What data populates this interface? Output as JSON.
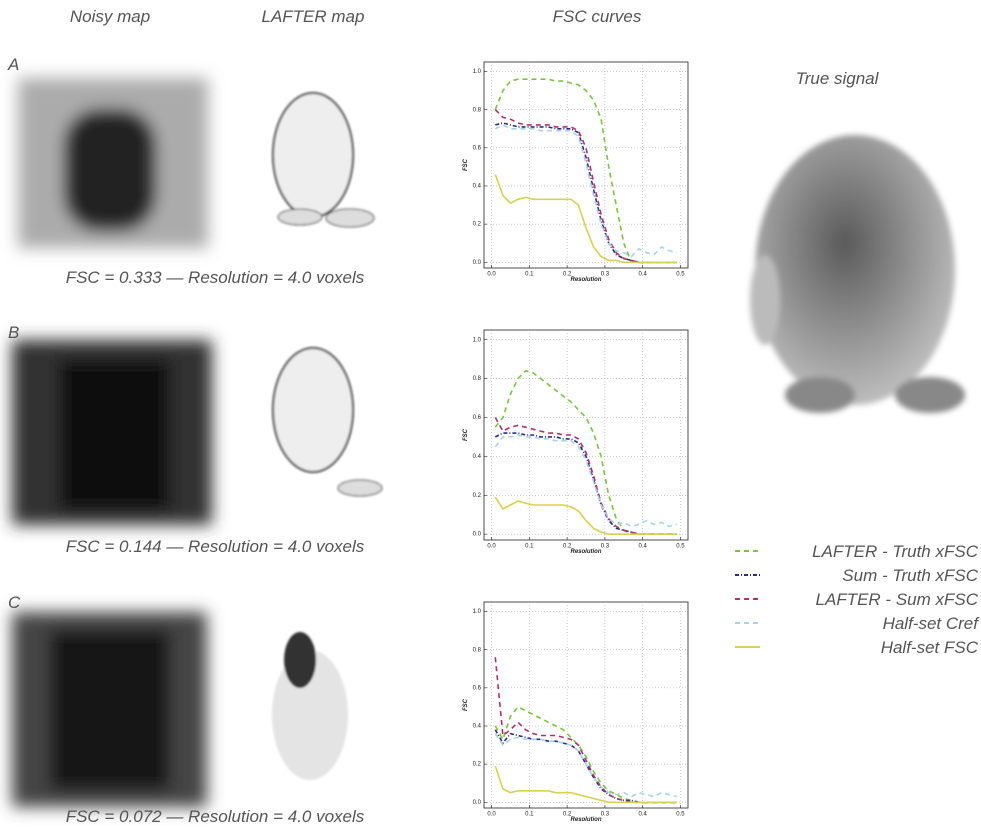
{
  "figure": {
    "columns": [
      "Noisy map",
      "LAFTER map",
      "FSC curves"
    ],
    "true_signal": "True signal",
    "panels": [
      {
        "letter": "A",
        "caption": "FSC = 0.333  —  Resolution = 4.0 voxels"
      },
      {
        "letter": "B",
        "caption": "FSC = 0.144  —  Resolution = 4.0 voxels"
      },
      {
        "letter": "C",
        "caption": "FSC = 0.072  —  Resolution = 4.0 voxels"
      }
    ]
  },
  "chart_data": [
    {
      "type": "line",
      "x_label": "Resolution",
      "y_label": "FSC",
      "x": [
        0.01,
        0.03,
        0.05,
        0.07,
        0.09,
        0.11,
        0.13,
        0.15,
        0.17,
        0.19,
        0.21,
        0.23,
        0.25,
        0.27,
        0.29,
        0.31,
        0.33,
        0.35,
        0.37,
        0.39,
        0.41,
        0.43,
        0.45,
        0.47,
        0.49
      ],
      "xlim": [
        -0.02,
        0.52
      ],
      "ylim": [
        -0.03,
        1.05
      ],
      "grid": true,
      "xticks": [
        {
          "value": 0,
          "label": "0.0"
        },
        {
          "value": 0.1,
          "label": "0.1"
        },
        {
          "value": 0.2,
          "label": "0.2"
        },
        {
          "value": 0.3,
          "label": "0.3"
        },
        {
          "value": 0.4,
          "label": "0.4"
        },
        {
          "value": 0.5,
          "label": "0.5"
        }
      ],
      "yticks": [
        {
          "value": 0,
          "label": "0.0"
        },
        {
          "value": 0.2,
          "label": "0.2"
        },
        {
          "value": 0.4,
          "label": "0.4"
        },
        {
          "value": 0.6,
          "label": "0.6"
        },
        {
          "value": 0.8,
          "label": "0.8"
        },
        {
          "value": 1,
          "label": "1.0"
        }
      ],
      "series": [
        {
          "name": "LAFTER - Truth xFSC",
          "color": "#7dc242",
          "linestyle": "dashed",
          "values": [
            0.8,
            0.9,
            0.95,
            0.96,
            0.96,
            0.96,
            0.96,
            0.96,
            0.95,
            0.95,
            0.94,
            0.93,
            0.9,
            0.85,
            0.75,
            0.5,
            0.3,
            0.1,
            0,
            0,
            0,
            0,
            0,
            0,
            0
          ]
        },
        {
          "name": "Sum - Truth xFSC",
          "color": "#2b2b8c",
          "linestyle": "dotted",
          "values": [
            0.72,
            0.73,
            0.72,
            0.71,
            0.71,
            0.71,
            0.71,
            0.71,
            0.7,
            0.7,
            0.7,
            0.68,
            0.55,
            0.38,
            0.22,
            0.1,
            0.04,
            0.02,
            0.01,
            0,
            0,
            0,
            0,
            0,
            0
          ]
        },
        {
          "name": "LAFTER - Sum xFSC",
          "color": "#b0306c",
          "linestyle": "dashed",
          "values": [
            0.8,
            0.76,
            0.75,
            0.73,
            0.72,
            0.72,
            0.72,
            0.72,
            0.71,
            0.71,
            0.71,
            0.69,
            0.6,
            0.42,
            0.25,
            0.12,
            0.05,
            0.02,
            0.01,
            0,
            0,
            0,
            0,
            0,
            0
          ]
        },
        {
          "name": "Half-set Cref",
          "color": "#a8d4e6",
          "linestyle": "dashed",
          "values": [
            0.7,
            0.72,
            0.7,
            0.7,
            0.7,
            0.7,
            0.69,
            0.69,
            0.69,
            0.69,
            0.69,
            0.66,
            0.52,
            0.35,
            0.2,
            0.1,
            0.06,
            0.05,
            0.03,
            0.07,
            0.05,
            0.04,
            0.08,
            0.06,
            0.05
          ]
        },
        {
          "name": "Half-set FSC",
          "color": "#d8d050",
          "linestyle": "solid",
          "values": [
            0.46,
            0.35,
            0.31,
            0.33,
            0.34,
            0.33,
            0.33,
            0.33,
            0.33,
            0.33,
            0.33,
            0.3,
            0.18,
            0.08,
            0.03,
            0.01,
            0.01,
            0,
            0,
            0,
            0,
            0,
            0,
            0,
            0
          ]
        }
      ]
    },
    {
      "type": "line",
      "x_label": "Resolution",
      "y_label": "FSC",
      "x": [
        0.01,
        0.03,
        0.05,
        0.07,
        0.09,
        0.11,
        0.13,
        0.15,
        0.17,
        0.19,
        0.21,
        0.23,
        0.25,
        0.27,
        0.29,
        0.31,
        0.33,
        0.35,
        0.37,
        0.39,
        0.41,
        0.43,
        0.45,
        0.47,
        0.49
      ],
      "xlim": [
        -0.02,
        0.52
      ],
      "ylim": [
        -0.03,
        1.05
      ],
      "grid": true,
      "xticks": [
        {
          "value": 0,
          "label": "0.0"
        },
        {
          "value": 0.1,
          "label": "0.1"
        },
        {
          "value": 0.2,
          "label": "0.2"
        },
        {
          "value": 0.3,
          "label": "0.3"
        },
        {
          "value": 0.4,
          "label": "0.4"
        },
        {
          "value": 0.5,
          "label": "0.5"
        }
      ],
      "yticks": [
        {
          "value": 0,
          "label": "0.0"
        },
        {
          "value": 0.2,
          "label": "0.2"
        },
        {
          "value": 0.4,
          "label": "0.4"
        },
        {
          "value": 0.6,
          "label": "0.6"
        },
        {
          "value": 0.8,
          "label": "0.8"
        },
        {
          "value": 1,
          "label": "1.0"
        }
      ],
      "series": [
        {
          "name": "LAFTER - Truth xFSC",
          "color": "#7dc242",
          "linestyle": "dashed",
          "values": [
            0.55,
            0.6,
            0.72,
            0.8,
            0.84,
            0.83,
            0.8,
            0.77,
            0.74,
            0.71,
            0.68,
            0.64,
            0.6,
            0.52,
            0.4,
            0.2,
            0.08,
            0.02,
            0,
            0,
            0,
            0,
            0,
            0,
            0
          ]
        },
        {
          "name": "Sum - Truth xFSC",
          "color": "#2b2b8c",
          "linestyle": "dotted",
          "values": [
            0.5,
            0.52,
            0.52,
            0.52,
            0.51,
            0.51,
            0.5,
            0.5,
            0.5,
            0.49,
            0.49,
            0.47,
            0.4,
            0.28,
            0.15,
            0.07,
            0.03,
            0.02,
            0.01,
            0,
            0,
            0,
            0,
            0,
            0
          ]
        },
        {
          "name": "LAFTER - Sum xFSC",
          "color": "#b0306c",
          "linestyle": "dashed",
          "values": [
            0.6,
            0.53,
            0.55,
            0.56,
            0.55,
            0.54,
            0.53,
            0.52,
            0.52,
            0.51,
            0.51,
            0.49,
            0.42,
            0.3,
            0.16,
            0.08,
            0.04,
            0.02,
            0.01,
            0,
            0,
            0,
            0,
            0,
            0
          ]
        },
        {
          "name": "Half-set Cref",
          "color": "#a8d4e6",
          "linestyle": "dashed",
          "values": [
            0.45,
            0.5,
            0.5,
            0.51,
            0.5,
            0.5,
            0.49,
            0.49,
            0.48,
            0.48,
            0.48,
            0.45,
            0.38,
            0.27,
            0.15,
            0.08,
            0.05,
            0.06,
            0.04,
            0.05,
            0.07,
            0.05,
            0.06,
            0.04,
            0.05
          ]
        },
        {
          "name": "Half-set FSC",
          "color": "#d8d050",
          "linestyle": "solid",
          "values": [
            0.19,
            0.13,
            0.15,
            0.17,
            0.16,
            0.15,
            0.15,
            0.15,
            0.15,
            0.15,
            0.14,
            0.12,
            0.07,
            0.03,
            0.01,
            0,
            0,
            0,
            0,
            0,
            0,
            0,
            0,
            0,
            0
          ]
        }
      ]
    },
    {
      "type": "line",
      "x_label": "Resolution",
      "y_label": "FSC",
      "x": [
        0.01,
        0.03,
        0.05,
        0.07,
        0.09,
        0.11,
        0.13,
        0.15,
        0.17,
        0.19,
        0.21,
        0.23,
        0.25,
        0.27,
        0.29,
        0.31,
        0.33,
        0.35,
        0.37,
        0.39,
        0.41,
        0.43,
        0.45,
        0.47,
        0.49
      ],
      "xlim": [
        -0.02,
        0.52
      ],
      "ylim": [
        -0.03,
        1.05
      ],
      "grid": true,
      "xticks": [
        {
          "value": 0,
          "label": "0.0"
        },
        {
          "value": 0.1,
          "label": "0.1"
        },
        {
          "value": 0.2,
          "label": "0.2"
        },
        {
          "value": 0.3,
          "label": "0.3"
        },
        {
          "value": 0.4,
          "label": "0.4"
        },
        {
          "value": 0.5,
          "label": "0.5"
        }
      ],
      "yticks": [
        {
          "value": 0,
          "label": "0.0"
        },
        {
          "value": 0.2,
          "label": "0.2"
        },
        {
          "value": 0.4,
          "label": "0.4"
        },
        {
          "value": 0.6,
          "label": "0.6"
        },
        {
          "value": 0.8,
          "label": "0.8"
        },
        {
          "value": 1,
          "label": "1.0"
        }
      ],
      "series": [
        {
          "name": "LAFTER - Truth xFSC",
          "color": "#7dc242",
          "linestyle": "dashed",
          "values": [
            0.4,
            0.33,
            0.45,
            0.5,
            0.48,
            0.46,
            0.44,
            0.42,
            0.4,
            0.38,
            0.34,
            0.3,
            0.24,
            0.16,
            0.1,
            0.06,
            0.04,
            0.02,
            0.01,
            0,
            0,
            0,
            0,
            0,
            0
          ]
        },
        {
          "name": "Sum - Truth xFSC",
          "color": "#2b2b8c",
          "linestyle": "dotted",
          "values": [
            0.38,
            0.31,
            0.36,
            0.35,
            0.34,
            0.33,
            0.33,
            0.32,
            0.32,
            0.31,
            0.3,
            0.27,
            0.2,
            0.13,
            0.07,
            0.04,
            0.02,
            0.01,
            0.01,
            0,
            0,
            0,
            0,
            0,
            0
          ]
        },
        {
          "name": "LAFTER - Sum xFSC",
          "color": "#b0306c",
          "linestyle": "dashed",
          "values": [
            0.76,
            0.35,
            0.38,
            0.42,
            0.38,
            0.36,
            0.35,
            0.35,
            0.35,
            0.34,
            0.33,
            0.3,
            0.22,
            0.14,
            0.08,
            0.04,
            0.02,
            0.01,
            0,
            0,
            0,
            0,
            0,
            0,
            0
          ]
        },
        {
          "name": "Half-set Cref",
          "color": "#a8d4e6",
          "linestyle": "dashed",
          "values": [
            0.36,
            0.3,
            0.33,
            0.34,
            0.33,
            0.33,
            0.33,
            0.32,
            0.32,
            0.31,
            0.3,
            0.27,
            0.2,
            0.13,
            0.08,
            0.05,
            0.04,
            0.05,
            0.03,
            0.05,
            0.04,
            0.03,
            0.05,
            0.04,
            0.03
          ]
        },
        {
          "name": "Half-set FSC",
          "color": "#d8d050",
          "linestyle": "solid",
          "values": [
            0.19,
            0.07,
            0.05,
            0.06,
            0.06,
            0.06,
            0.06,
            0.06,
            0.05,
            0.05,
            0.05,
            0.04,
            0.03,
            0.02,
            0.01,
            0,
            0,
            0,
            0,
            0,
            0,
            0,
            0,
            0,
            0
          ]
        }
      ]
    }
  ]
}
